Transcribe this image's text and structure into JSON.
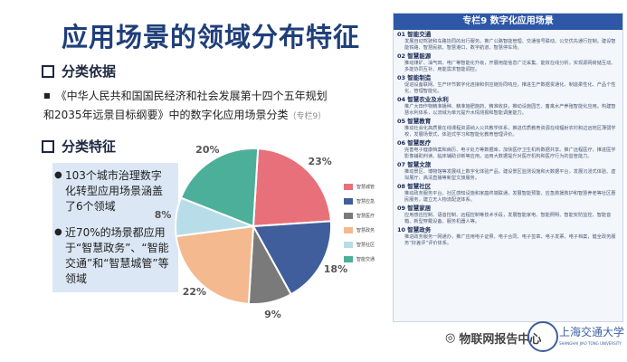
{
  "page": {
    "title": "应用场景的领域分布特征"
  },
  "basis": {
    "heading": "分类依据",
    "text": "《中华人民共和国国民经济和社会发展第十四个五年规划和2035年远景目标纲要》中的数字化应用场景分类",
    "note": "（专栏9）"
  },
  "features": {
    "heading": "分类特征",
    "point1": "103个城市治理数字化转型应用场景涵盖了6个领域",
    "point2": "近70%的场景都应用于“智慧政务”、“智能交通”和“智慧城管”等领域"
  },
  "chart_data": {
    "type": "pie",
    "values": [
      23,
      18,
      9,
      22,
      8,
      20
    ],
    "labels": [
      "23%",
      "18%",
      "9%",
      "22%",
      "8%",
      "20%"
    ],
    "legend": [
      "智慧城管",
      "智慧应急",
      "智慧医疗",
      "智慧政务",
      "智慧社区",
      "智能交通"
    ],
    "colors": [
      "#e8707a",
      "#3f5e9b",
      "#7a7a7a",
      "#f4b98e",
      "#b7dde8",
      "#4caf9a"
    ]
  },
  "panel": {
    "header": "专栏9 数字化应用场景",
    "entries": [
      {
        "title": "01 智能交通",
        "body": "发展自动驾驶和车路协同的出行服务。推广公路智能管理、交通信号联动、公交优先通行控制。建设智能铁路、智慧民航、智慧港口、数字航道、智慧停车场。"
      },
      {
        "title": "02 智慧能源",
        "body": "推动煤矿、油气田、电厂等智能化升级，开展用能信息广泛采集、能效在线分析，实现源网荷储互动、多能协同互补、用能需求智能调控。"
      },
      {
        "title": "03 智能制造",
        "body": "促进设备联网、生产环节数字化连接和供应链协同响应，推进生产数据贯通化、制造柔性化、产品个性化、管理智能化。"
      },
      {
        "title": "04 智慧农业及水利",
        "body": "推广大田作物精准播种、精准施肥施药、精准收获，推动设施园艺、畜禽水产养殖智能化应用。构建智慧水利体系，以流域为单元提升水情测报和智能调度能力。"
      },
      {
        "title": "05 智慧教育",
        "body": "推动社会化高质量在线课程资源纳入公共教学体系，推进优质教育资源在线辐射农村和边远地区薄弱学校，发展场景式、体验式学习和智能化教育管理评价。"
      },
      {
        "title": "06 智慧医疗",
        "body": "完善电子健康档案和病历、电子处方等数据库，加快医疗卫生机构数据共享。推广远程医疗，推进医学影像辅助判读、临床辅助诊断等应用。运用大数据提升对医疗机构和医疗行为的监管能力。"
      },
      {
        "title": "07 智慧文旅",
        "body": "推动景区、博物馆等发展线上数字化体验产品，建设景区监测设施和大数据平台，发展沉浸式体验、虚拟展厅、高清直播等新型文旅服务。"
      },
      {
        "title": "08 智慧社区",
        "body": "推动政务服务平台、社区感知设施和家庭终端联通，发展智能预警、应急救援救护和智慧养老等社区惠民服务，建立无人物流配送体系。"
      },
      {
        "title": "09 智慧家居",
        "body": "应用感应控制、语音控制、远程控制等技术手段，发展智能家电、智能照明、智能安防监控、智能音箱、新型穿戴设备、服务机器人等。"
      },
      {
        "title": "10 智慧政务",
        "body": "推进政务服务一网通办，推广应用电子证照、电子合同、电子签章、电子发票、电子档案，健全政务服务“好差评”评价体系。"
      }
    ]
  },
  "footer": {
    "watermark": "物联网报告中心",
    "school_cn": "上海交通大学",
    "school_en": "SHANGHAI JIAO TONG UNIVERSITY"
  }
}
